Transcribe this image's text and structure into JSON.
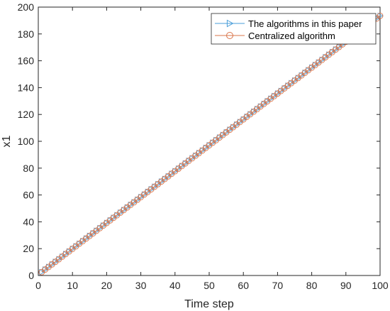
{
  "chart_data": {
    "type": "line",
    "title": "",
    "xlabel": "Time step",
    "ylabel": "x1",
    "xlim": [
      0,
      100
    ],
    "ylim": [
      0,
      200
    ],
    "x_ticks": [
      0,
      10,
      20,
      30,
      40,
      50,
      60,
      70,
      80,
      90,
      100
    ],
    "y_ticks": [
      0,
      20,
      40,
      60,
      80,
      100,
      120,
      140,
      160,
      180,
      200
    ],
    "x_tick_labels": [
      "0",
      "10",
      "20",
      "30",
      "40",
      "50",
      "60",
      "70",
      "80",
      "90",
      "100"
    ],
    "y_tick_labels": [
      "0",
      "20",
      "40",
      "60",
      "80",
      "100",
      "120",
      "140",
      "160",
      "180",
      "200"
    ],
    "grid": false,
    "legend_position": "top-right",
    "x": {
      "start": 1,
      "end": 100,
      "step": 1
    },
    "series": [
      {
        "name": "The algorithms in this paper",
        "color": "#4a9ed9",
        "marker": "triangle-right",
        "y_start": 2.5,
        "y_end": 193.5
      },
      {
        "name": "Centralized algorithm",
        "color": "#d9744a",
        "marker": "circle",
        "y_start": 2.5,
        "y_end": 193.5
      }
    ]
  }
}
